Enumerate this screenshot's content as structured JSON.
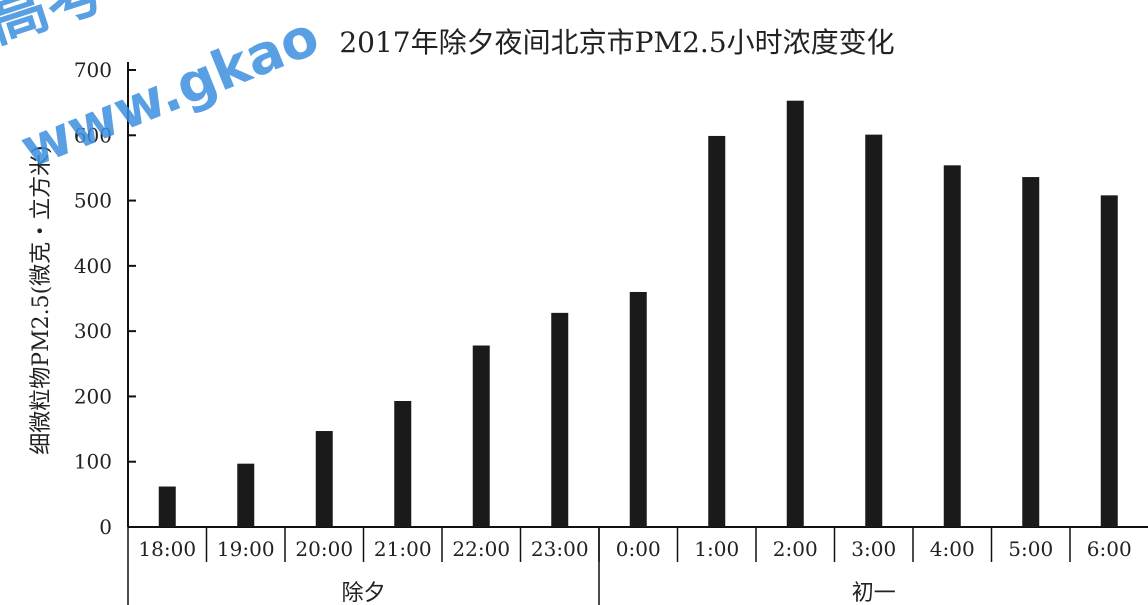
{
  "watermark": {
    "line1": "高考",
    "line2": "www.gkao",
    "color": "#3b8fe0"
  },
  "chart_data": {
    "type": "bar",
    "title": "2017年除夕夜间北京市PM2.5小时浓度变化",
    "ylabel": "细微粒物PM2.5(微克・立方米)",
    "xlabel": "",
    "ylim": [
      0,
      700
    ],
    "yticks": [
      0,
      100,
      200,
      300,
      400,
      500,
      600,
      700
    ],
    "categories": [
      "18:00",
      "19:00",
      "20:00",
      "21:00",
      "22:00",
      "23:00",
      "0:00",
      "1:00",
      "2:00",
      "3:00",
      "4:00",
      "5:00",
      "6:00"
    ],
    "values": [
      62,
      97,
      147,
      193,
      278,
      328,
      360,
      599,
      653,
      601,
      554,
      536,
      508
    ],
    "groups": [
      {
        "label": "除夕",
        "start": 0,
        "end": 5
      },
      {
        "label": "初一",
        "start": 6,
        "end": 12
      }
    ],
    "bar_color": "#1a1a1a",
    "grid": false,
    "legend": "none"
  }
}
